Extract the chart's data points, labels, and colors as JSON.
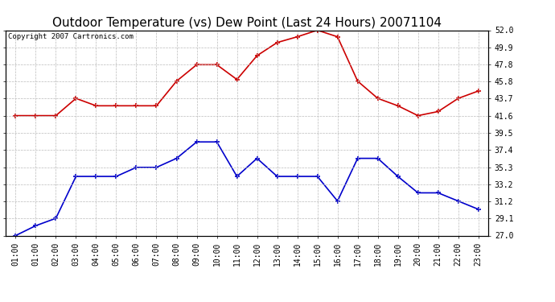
{
  "title": "Outdoor Temperature (vs) Dew Point (Last 24 Hours) 20071104",
  "copyright_text": "Copyright 2007 Cartronics.com",
  "x_labels": [
    "01:00",
    "01:00",
    "02:00",
    "03:00",
    "04:00",
    "05:00",
    "06:00",
    "07:00",
    "08:00",
    "09:00",
    "10:00",
    "11:00",
    "12:00",
    "13:00",
    "14:00",
    "15:00",
    "16:00",
    "17:00",
    "18:00",
    "19:00",
    "20:00",
    "21:00",
    "22:00",
    "23:00"
  ],
  "temp_data": [
    41.6,
    41.6,
    41.6,
    43.7,
    42.8,
    42.8,
    42.8,
    42.8,
    45.8,
    47.8,
    47.8,
    46.0,
    48.9,
    50.5,
    51.2,
    52.0,
    51.2,
    45.8,
    43.7,
    42.8,
    41.6,
    42.1,
    43.7,
    44.6
  ],
  "dew_data": [
    27.0,
    28.2,
    29.1,
    34.2,
    34.2,
    34.2,
    35.3,
    35.3,
    36.4,
    38.4,
    38.4,
    34.2,
    36.4,
    34.2,
    34.2,
    34.2,
    31.2,
    36.4,
    36.4,
    34.2,
    32.2,
    32.2,
    31.2,
    30.2
  ],
  "temp_color": "#cc0000",
  "dew_color": "#0000cc",
  "marker": "+",
  "marker_size": 4,
  "line_width": 1.2,
  "ylim": [
    27.0,
    52.0
  ],
  "yticks": [
    27.0,
    29.1,
    31.2,
    33.2,
    35.3,
    37.4,
    39.5,
    41.6,
    43.7,
    45.8,
    47.8,
    49.9,
    52.0
  ],
  "bg_color": "#ffffff",
  "plot_bg_color": "#ffffff",
  "grid_color": "#bbbbbb",
  "title_fontsize": 11,
  "tick_fontsize": 7,
  "copyright_fontsize": 6.5
}
